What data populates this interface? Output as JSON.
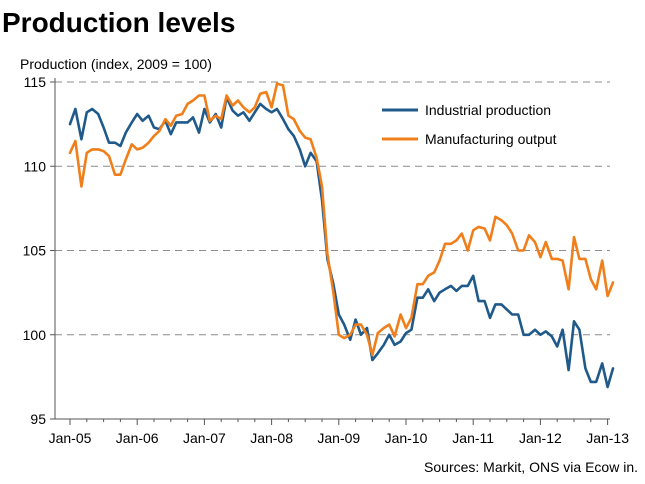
{
  "chart_data": {
    "type": "line",
    "title": "Production levels",
    "ylabel": "Production (index, 2009 = 100)",
    "xlabel": "",
    "source": "Sources: Markit, ONS via Ecow in.",
    "ylim": [
      95,
      115
    ],
    "yticks": [
      95,
      100,
      105,
      110,
      115
    ],
    "xlim": [
      2005.0,
      2013.25
    ],
    "xticks": [
      {
        "label": "Jan-05",
        "value": 2005.0
      },
      {
        "label": "Jan-06",
        "value": 2006.0
      },
      {
        "label": "Jan-07",
        "value": 2007.0
      },
      {
        "label": "Jan-08",
        "value": 2008.0
      },
      {
        "label": "Jan-09",
        "value": 2009.0
      },
      {
        "label": "Jan-10",
        "value": 2010.0
      },
      {
        "label": "Jan-11",
        "value": 2011.0
      },
      {
        "label": "Jan-12",
        "value": 2012.0
      },
      {
        "label": "Jan-13",
        "value": 2013.0
      }
    ],
    "grid": "horizontal-dashed",
    "legend_position": "top-right",
    "series": [
      {
        "name": "Industrial production",
        "color": "#1f5a8a",
        "points": [
          [
            2005.0,
            112.5
          ],
          [
            2005.08,
            113.4
          ],
          [
            2005.17,
            111.6
          ],
          [
            2005.25,
            113.2
          ],
          [
            2005.33,
            113.4
          ],
          [
            2005.42,
            113.1
          ],
          [
            2005.5,
            112.3
          ],
          [
            2005.58,
            111.4
          ],
          [
            2005.67,
            111.4
          ],
          [
            2005.75,
            111.2
          ],
          [
            2005.83,
            112.0
          ],
          [
            2005.92,
            112.6
          ],
          [
            2006.0,
            113.1
          ],
          [
            2006.08,
            112.7
          ],
          [
            2006.17,
            113.0
          ],
          [
            2006.25,
            112.3
          ],
          [
            2006.33,
            112.2
          ],
          [
            2006.42,
            112.7
          ],
          [
            2006.5,
            111.9
          ],
          [
            2006.58,
            112.6
          ],
          [
            2006.67,
            112.6
          ],
          [
            2006.75,
            112.6
          ],
          [
            2006.83,
            112.9
          ],
          [
            2006.92,
            112.0
          ],
          [
            2007.0,
            113.4
          ],
          [
            2007.08,
            112.6
          ],
          [
            2007.17,
            113.1
          ],
          [
            2007.25,
            112.3
          ],
          [
            2007.33,
            114.1
          ],
          [
            2007.42,
            113.3
          ],
          [
            2007.5,
            113.0
          ],
          [
            2007.58,
            113.2
          ],
          [
            2007.67,
            112.7
          ],
          [
            2007.75,
            113.2
          ],
          [
            2007.83,
            113.7
          ],
          [
            2007.92,
            113.4
          ],
          [
            2008.0,
            113.2
          ],
          [
            2008.08,
            113.4
          ],
          [
            2008.17,
            112.8
          ],
          [
            2008.25,
            112.2
          ],
          [
            2008.33,
            111.8
          ],
          [
            2008.42,
            111.0
          ],
          [
            2008.5,
            110.0
          ],
          [
            2008.58,
            110.8
          ],
          [
            2008.67,
            110.3
          ],
          [
            2008.75,
            108.0
          ],
          [
            2008.83,
            104.5
          ],
          [
            2008.92,
            103.0
          ],
          [
            2009.0,
            101.2
          ],
          [
            2009.08,
            100.6
          ],
          [
            2009.17,
            99.7
          ],
          [
            2009.25,
            100.9
          ],
          [
            2009.33,
            100.0
          ],
          [
            2009.42,
            100.4
          ],
          [
            2009.5,
            98.5
          ],
          [
            2009.58,
            98.9
          ],
          [
            2009.67,
            99.4
          ],
          [
            2009.75,
            100.0
          ],
          [
            2009.83,
            99.4
          ],
          [
            2009.92,
            99.6
          ],
          [
            2010.0,
            100.1
          ],
          [
            2010.08,
            100.3
          ],
          [
            2010.17,
            102.2
          ],
          [
            2010.25,
            102.2
          ],
          [
            2010.33,
            102.7
          ],
          [
            2010.42,
            102.0
          ],
          [
            2010.5,
            102.5
          ],
          [
            2010.58,
            102.7
          ],
          [
            2010.67,
            102.9
          ],
          [
            2010.75,
            102.6
          ],
          [
            2010.83,
            102.9
          ],
          [
            2010.92,
            102.9
          ],
          [
            2011.0,
            103.5
          ],
          [
            2011.08,
            102.0
          ],
          [
            2011.17,
            102.0
          ],
          [
            2011.25,
            101.0
          ],
          [
            2011.33,
            101.8
          ],
          [
            2011.42,
            101.8
          ],
          [
            2011.5,
            101.5
          ],
          [
            2011.58,
            101.2
          ],
          [
            2011.67,
            101.2
          ],
          [
            2011.75,
            100.0
          ],
          [
            2011.83,
            100.0
          ],
          [
            2011.92,
            100.3
          ],
          [
            2012.0,
            100.0
          ],
          [
            2012.08,
            100.2
          ],
          [
            2012.17,
            99.9
          ],
          [
            2012.25,
            99.3
          ],
          [
            2012.33,
            100.3
          ],
          [
            2012.42,
            97.9
          ],
          [
            2012.5,
            100.8
          ],
          [
            2012.58,
            100.3
          ],
          [
            2012.67,
            98.0
          ],
          [
            2012.75,
            97.2
          ],
          [
            2012.83,
            97.2
          ],
          [
            2012.92,
            98.3
          ],
          [
            2013.0,
            96.9
          ],
          [
            2013.08,
            98.0
          ]
        ]
      },
      {
        "name": "Manufacturing output",
        "color": "#f07f1b",
        "points": [
          [
            2005.0,
            110.8
          ],
          [
            2005.08,
            111.5
          ],
          [
            2005.17,
            108.8
          ],
          [
            2005.25,
            110.8
          ],
          [
            2005.33,
            111.0
          ],
          [
            2005.42,
            111.0
          ],
          [
            2005.5,
            110.9
          ],
          [
            2005.58,
            110.6
          ],
          [
            2005.67,
            109.5
          ],
          [
            2005.75,
            109.5
          ],
          [
            2005.83,
            110.4
          ],
          [
            2005.92,
            111.3
          ],
          [
            2006.0,
            111.0
          ],
          [
            2006.08,
            111.1
          ],
          [
            2006.17,
            111.4
          ],
          [
            2006.25,
            111.8
          ],
          [
            2006.33,
            112.1
          ],
          [
            2006.42,
            112.8
          ],
          [
            2006.5,
            112.4
          ],
          [
            2006.58,
            113.0
          ],
          [
            2006.67,
            113.1
          ],
          [
            2006.75,
            113.7
          ],
          [
            2006.83,
            113.9
          ],
          [
            2006.92,
            114.2
          ],
          [
            2007.0,
            114.2
          ],
          [
            2007.08,
            112.7
          ],
          [
            2007.17,
            113.0
          ],
          [
            2007.25,
            112.8
          ],
          [
            2007.33,
            114.2
          ],
          [
            2007.42,
            113.6
          ],
          [
            2007.5,
            113.9
          ],
          [
            2007.58,
            113.5
          ],
          [
            2007.67,
            113.2
          ],
          [
            2007.75,
            113.5
          ],
          [
            2007.83,
            114.3
          ],
          [
            2007.92,
            114.4
          ],
          [
            2008.0,
            113.5
          ],
          [
            2008.08,
            114.9
          ],
          [
            2008.17,
            114.8
          ],
          [
            2008.25,
            113.0
          ],
          [
            2008.33,
            112.8
          ],
          [
            2008.42,
            112.1
          ],
          [
            2008.5,
            111.7
          ],
          [
            2008.58,
            111.6
          ],
          [
            2008.67,
            110.5
          ],
          [
            2008.75,
            108.8
          ],
          [
            2008.83,
            104.8
          ],
          [
            2008.92,
            102.5
          ],
          [
            2009.0,
            100.0
          ],
          [
            2009.08,
            99.8
          ],
          [
            2009.17,
            100.0
          ],
          [
            2009.25,
            100.6
          ],
          [
            2009.33,
            100.6
          ],
          [
            2009.42,
            100.0
          ],
          [
            2009.5,
            98.8
          ],
          [
            2009.58,
            100.1
          ],
          [
            2009.67,
            100.4
          ],
          [
            2009.75,
            100.6
          ],
          [
            2009.83,
            99.9
          ],
          [
            2009.92,
            101.2
          ],
          [
            2010.0,
            100.4
          ],
          [
            2010.08,
            101.0
          ],
          [
            2010.17,
            103.0
          ],
          [
            2010.25,
            103.0
          ],
          [
            2010.33,
            103.5
          ],
          [
            2010.42,
            103.7
          ],
          [
            2010.5,
            104.4
          ],
          [
            2010.58,
            105.4
          ],
          [
            2010.67,
            105.4
          ],
          [
            2010.75,
            105.6
          ],
          [
            2010.83,
            106.0
          ],
          [
            2010.92,
            105.0
          ],
          [
            2011.0,
            106.2
          ],
          [
            2011.08,
            106.4
          ],
          [
            2011.17,
            106.3
          ],
          [
            2011.25,
            105.6
          ],
          [
            2011.33,
            107.0
          ],
          [
            2011.42,
            106.8
          ],
          [
            2011.5,
            106.5
          ],
          [
            2011.58,
            106.0
          ],
          [
            2011.67,
            105.0
          ],
          [
            2011.75,
            105.0
          ],
          [
            2011.83,
            105.9
          ],
          [
            2011.92,
            105.5
          ],
          [
            2012.0,
            104.6
          ],
          [
            2012.08,
            105.5
          ],
          [
            2012.17,
            104.5
          ],
          [
            2012.25,
            104.5
          ],
          [
            2012.33,
            104.4
          ],
          [
            2012.42,
            102.7
          ],
          [
            2012.5,
            105.8
          ],
          [
            2012.58,
            104.5
          ],
          [
            2012.67,
            104.5
          ],
          [
            2012.75,
            103.3
          ],
          [
            2012.83,
            102.7
          ],
          [
            2012.92,
            104.4
          ],
          [
            2013.0,
            102.3
          ],
          [
            2013.08,
            103.1
          ]
        ]
      }
    ]
  }
}
